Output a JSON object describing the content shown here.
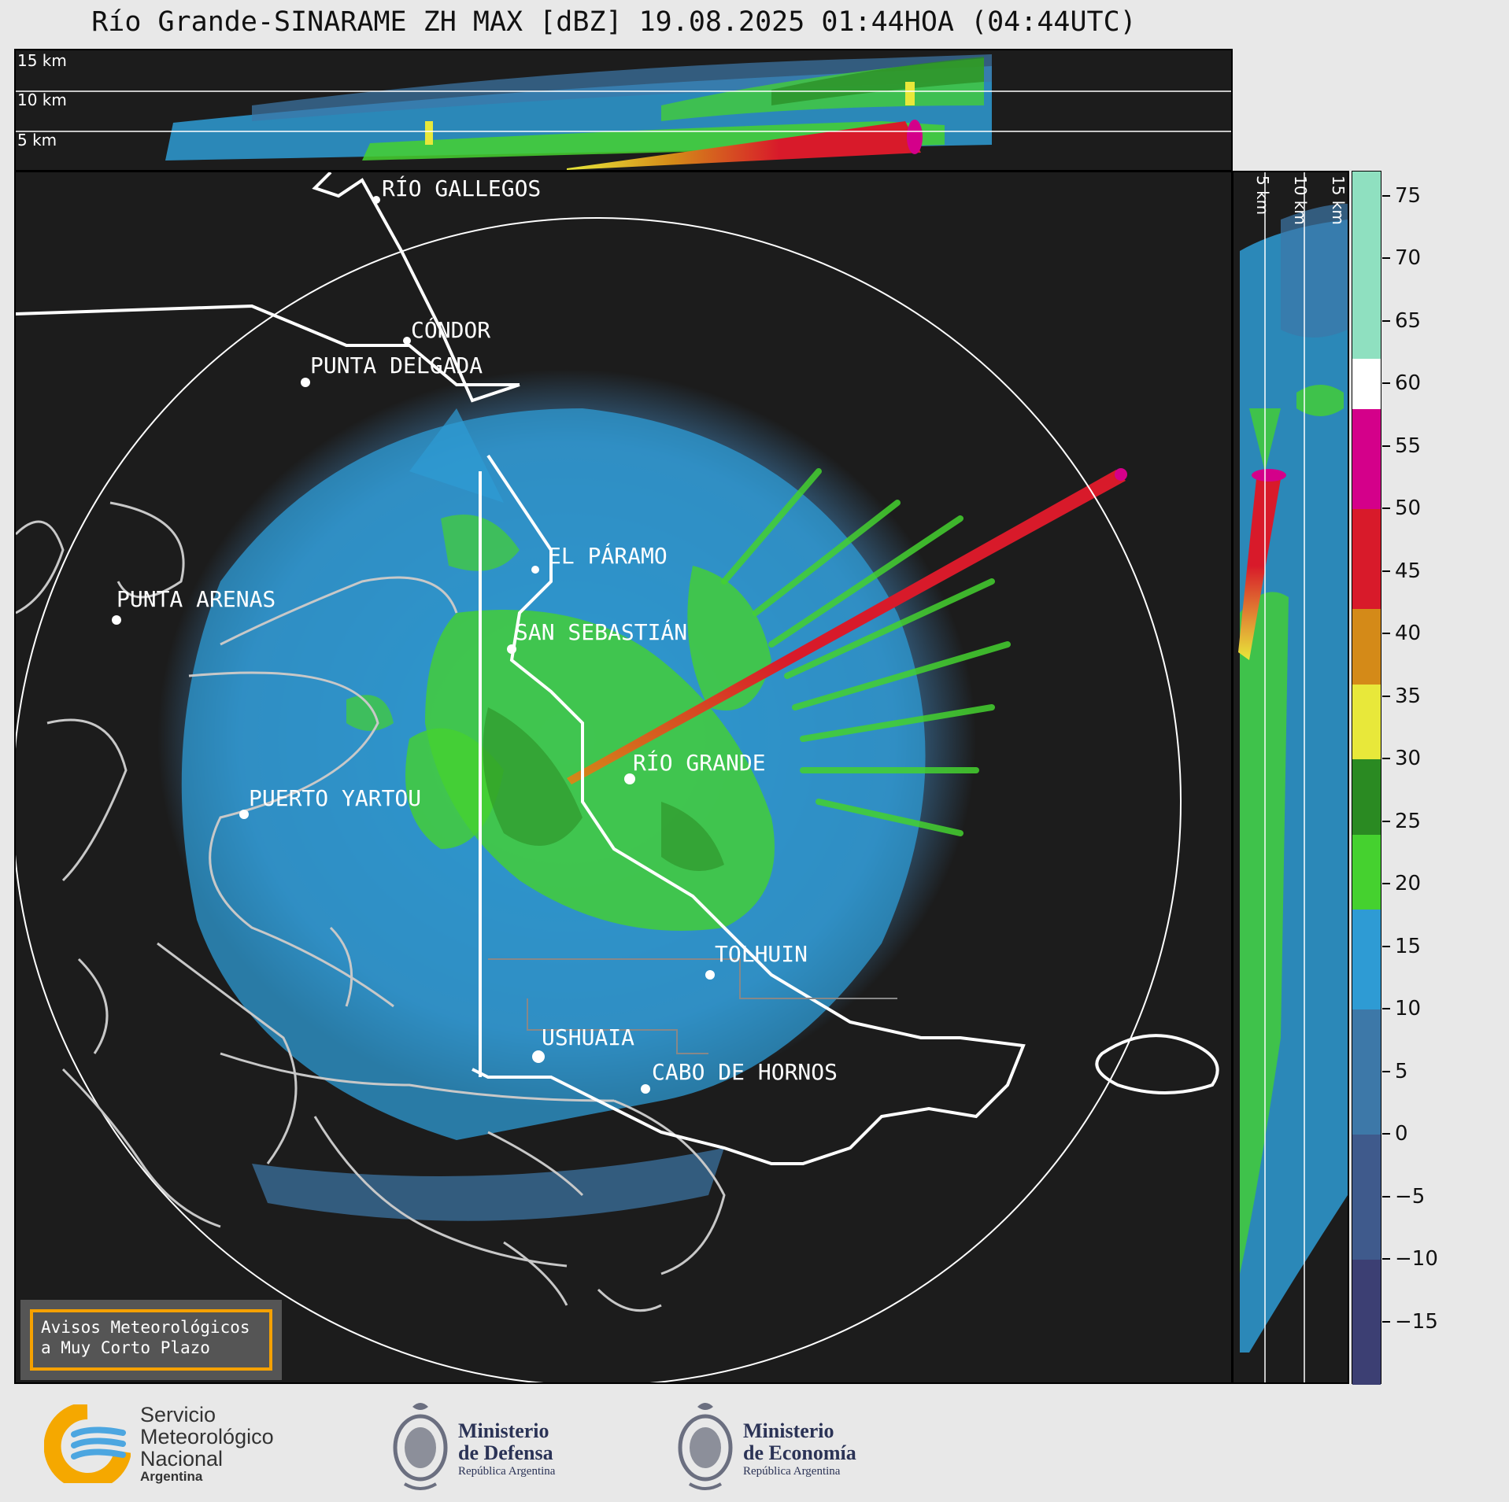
{
  "title": "Río Grande-SINARAME ZH MAX [dBZ] 19.08.2025 01:44HOA (04:44UTC)",
  "altitude_labels": {
    "km15": "15 km",
    "km10": "10 km",
    "km5": "5 km"
  },
  "cities": {
    "rio_gallegos": "RÍO GALLEGOS",
    "condor": "CÓNDOR",
    "punta_delgada": "PUNTA DELGADA",
    "punta_arenas": "PUNTA ARENAS",
    "el_paramo": "EL PÁRAMO",
    "san_sebastian": "SAN SEBASTIÁN",
    "rio_grande": "RÍO GRANDE",
    "puerto_yartou": "PUERTO YARTOU",
    "tolhuin": "TOLHUIN",
    "ushuaia": "USHUAIA",
    "cabo_de_hornos": "CABO DE HORNOS"
  },
  "colorbar": {
    "unit": "dBZ",
    "ticks": [
      "75",
      "70",
      "65",
      "60",
      "55",
      "50",
      "45",
      "40",
      "35",
      "30",
      "25",
      "20",
      "15",
      "10",
      "5",
      "0",
      "−5",
      "−10",
      "−15"
    ],
    "tick_values": [
      75,
      70,
      65,
      60,
      55,
      50,
      45,
      40,
      35,
      30,
      25,
      20,
      15,
      10,
      5,
      0,
      -5,
      -10,
      -15
    ],
    "range": [
      -20,
      77
    ],
    "stops": [
      {
        "from": -20,
        "to": -10,
        "color": "#3c3f73"
      },
      {
        "from": -10,
        "to": 0,
        "color": "#3f5a8c"
      },
      {
        "from": 0,
        "to": 10,
        "color": "#3d78a8"
      },
      {
        "from": 10,
        "to": 18,
        "color": "#2e9bd4"
      },
      {
        "from": 18,
        "to": 24,
        "color": "#45d12f"
      },
      {
        "from": 24,
        "to": 30,
        "color": "#2a8a22"
      },
      {
        "from": 30,
        "to": 36,
        "color": "#e8e83a"
      },
      {
        "from": 36,
        "to": 42,
        "color": "#d48a18"
      },
      {
        "from": 42,
        "to": 50,
        "color": "#d81a2a"
      },
      {
        "from": 50,
        "to": 58,
        "color": "#d4008a"
      },
      {
        "from": 58,
        "to": 62,
        "color": "#ffffff"
      },
      {
        "from": 62,
        "to": 77,
        "color": "#8fe0c0"
      }
    ]
  },
  "notice": {
    "line1": "Avisos Meteorológicos",
    "line2": "a Muy Corto Plazo"
  },
  "logos": {
    "smn": {
      "line1": "Servicio",
      "line2": "Meteorológico",
      "line3": "Nacional",
      "line4": "Argentina"
    },
    "defensa": {
      "line1": "Ministerio",
      "line2": "de Defensa",
      "line3": "República Argentina"
    },
    "economia": {
      "line1": "Ministerio",
      "line2": "de Economía",
      "line3": "República Argentina"
    }
  },
  "colors": {
    "background": "#e8e8e8",
    "panel": "#1c1c1c",
    "echo_low": "#2e9bd4",
    "echo_mid": "#45d12f",
    "echo_high": "#d81a2a",
    "notice_border": "#f5a100"
  }
}
